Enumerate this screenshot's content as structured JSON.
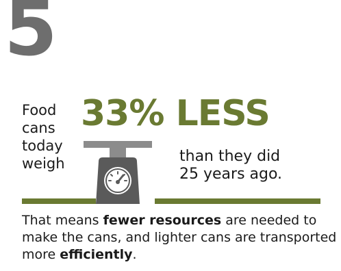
{
  "number": "5",
  "left_lines": [
    "Food",
    "cans",
    "today",
    "weigh"
  ],
  "headline": "33% LESS",
  "right_lines": [
    "than they did",
    "25 years ago."
  ],
  "body": {
    "part1": "That means ",
    "bold1": "fewer resources",
    "part2": " are needed to make the cans, and lighter cans are transported more ",
    "bold2": "efficiently",
    "part3": "."
  },
  "colors": {
    "accent_green": "#6a7a32",
    "number_gray": "#6e6e6e",
    "scale_gray": "#8c8c8c",
    "scale_dark": "#505050"
  },
  "icons": [
    "scale-icon"
  ]
}
